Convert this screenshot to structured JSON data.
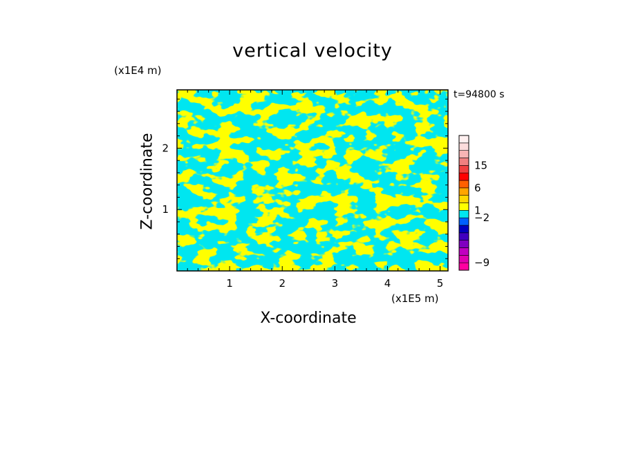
{
  "chart_data": {
    "type": "heatmap",
    "title": "vertical velocity",
    "xlabel": "X-coordinate",
    "ylabel": "Z-coordinate",
    "x_unit": "(x1E5 m)",
    "y_unit": "(x1E4 m)",
    "annotation": "t=94800 s",
    "xlim": [
      0,
      5.15
    ],
    "ylim": [
      0,
      2.95
    ],
    "x_ticks": [
      "1",
      "2",
      "3",
      "4",
      "5"
    ],
    "y_ticks": [
      "1",
      "2"
    ],
    "grid": false,
    "dominant_colors": {
      "positive": "#ffff00",
      "negative": "#00e6f0"
    },
    "colorbar": {
      "tick_labels": [
        "15",
        "6",
        "1",
        "−2",
        "−9"
      ],
      "levels": [
        {
          "color": "#ff00a0"
        },
        {
          "color": "#e000b0"
        },
        {
          "color": "#c000c0"
        },
        {
          "color": "#8000c0"
        },
        {
          "color": "#4000c0"
        },
        {
          "color": "#0000c0"
        },
        {
          "color": "#0060ff"
        },
        {
          "color": "#00e6f0"
        },
        {
          "color": "#ffff00"
        },
        {
          "color": "#ffd700"
        },
        {
          "color": "#ffa500"
        },
        {
          "color": "#ff6000"
        },
        {
          "color": "#ff0000"
        },
        {
          "color": "#f04040"
        },
        {
          "color": "#f08080"
        },
        {
          "color": "#f8b4b4"
        },
        {
          "color": "#fcdcdc"
        },
        {
          "color": "#fff0f0"
        }
      ]
    }
  }
}
